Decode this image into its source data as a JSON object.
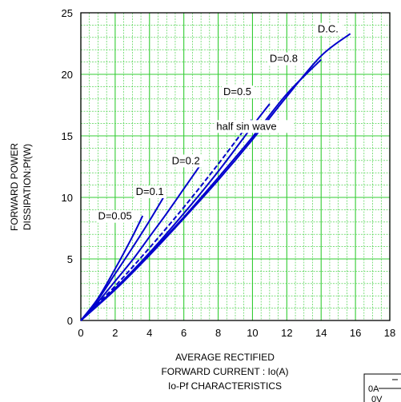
{
  "chart_data": {
    "type": "line",
    "title": "Io-Pf CHARACTERISTICS",
    "xlabel": [
      "AVERAGE RECTIFIED",
      "FORWARD CURRENT : Io(A)"
    ],
    "ylabel": [
      "FORWARD POWER",
      "DISSIPATION:Pf(W)"
    ],
    "xlim": [
      0,
      18
    ],
    "ylim": [
      0,
      25
    ],
    "x_ticks": [
      "0",
      "2",
      "4",
      "6",
      "8",
      "10",
      "12",
      "14",
      "16",
      "18"
    ],
    "y_ticks": [
      "0",
      "5",
      "10",
      "15",
      "20",
      "25"
    ],
    "grid": true,
    "minor_grid": true,
    "colors": {
      "grid": "#33cc33",
      "series": "#0000cc",
      "axis": "#000000"
    },
    "series": [
      {
        "name": "D=0.05",
        "label_at": [
          1.0,
          8.2
        ],
        "x": [
          0,
          1,
          2,
          3,
          3.6
        ],
        "y": [
          0,
          1.8,
          4.2,
          6.8,
          8.5
        ]
      },
      {
        "name": "D=0.1",
        "label_at": [
          3.2,
          10.2
        ],
        "x": [
          0,
          1,
          2,
          3,
          4,
          4.9
        ],
        "y": [
          0,
          1.7,
          3.8,
          5.9,
          8.1,
          10.2
        ]
      },
      {
        "name": "D=0.2",
        "label_at": [
          5.3,
          12.7
        ],
        "x": [
          0,
          1,
          2,
          3,
          4,
          5,
          6,
          7
        ],
        "y": [
          0,
          1.5,
          3.2,
          4.9,
          6.8,
          8.7,
          10.7,
          12.7
        ]
      },
      {
        "name": "half sin wave",
        "label_at": [
          7.9,
          15.5
        ],
        "dashed": true,
        "x": [
          0,
          2,
          4,
          6,
          8,
          10
        ],
        "y": [
          0,
          2.8,
          5.9,
          9.2,
          12.7,
          16.4
        ]
      },
      {
        "name": "D=0.5",
        "label_at": [
          8.3,
          18.3
        ],
        "x": [
          0,
          2,
          4,
          6,
          8,
          10,
          11
        ],
        "y": [
          0,
          2.6,
          5.5,
          8.7,
          12.1,
          15.8,
          17.6
        ]
      },
      {
        "name": "D=0.8",
        "label_at": [
          11.0,
          21.0
        ],
        "x": [
          0,
          2,
          4,
          6,
          8,
          10,
          12,
          14
        ],
        "y": [
          0,
          2.6,
          5.4,
          8.4,
          11.6,
          14.9,
          18.4,
          21.2
        ]
      },
      {
        "name": "D.C.",
        "label_at": [
          13.8,
          23.4
        ],
        "x": [
          0,
          2,
          4,
          6,
          8,
          10,
          12,
          14,
          15.7
        ],
        "y": [
          0,
          2.5,
          5.3,
          8.3,
          11.4,
          14.7,
          18.2,
          21.5,
          23.3
        ]
      }
    ]
  },
  "inset": {
    "lines": [
      "0A",
      "0V"
    ]
  }
}
